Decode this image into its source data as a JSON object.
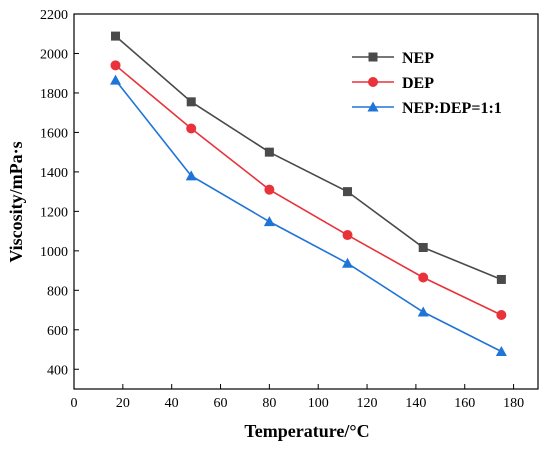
{
  "chart_data": {
    "type": "line",
    "title": "",
    "xlabel": "Temperature/°C",
    "ylabel": "Viscosity/mPa·s",
    "xlim": [
      0,
      190
    ],
    "ylim": [
      300,
      2200
    ],
    "xticks": [
      0,
      20,
      40,
      60,
      80,
      100,
      120,
      140,
      160,
      180
    ],
    "yticks": [
      400,
      600,
      800,
      1000,
      1200,
      1400,
      1600,
      1800,
      2000,
      2200
    ],
    "grid": false,
    "legend_position": "top-right",
    "series": [
      {
        "name": "NEP",
        "color": "#4a4a4a",
        "marker": "square",
        "x": [
          17,
          48,
          80,
          112,
          143,
          175
        ],
        "y": [
          2088,
          1755,
          1500,
          1300,
          1017,
          855
        ]
      },
      {
        "name": "DEP",
        "color": "#e8333a",
        "marker": "circle",
        "x": [
          17,
          48,
          80,
          112,
          143,
          175
        ],
        "y": [
          1940,
          1620,
          1310,
          1080,
          865,
          675
        ]
      },
      {
        "name": "NEP:DEP=1:1",
        "color": "#1f74d8",
        "marker": "triangle",
        "x": [
          17,
          48,
          80,
          112,
          143,
          175
        ],
        "y": [
          1865,
          1380,
          1148,
          937,
          690,
          490
        ]
      }
    ]
  }
}
